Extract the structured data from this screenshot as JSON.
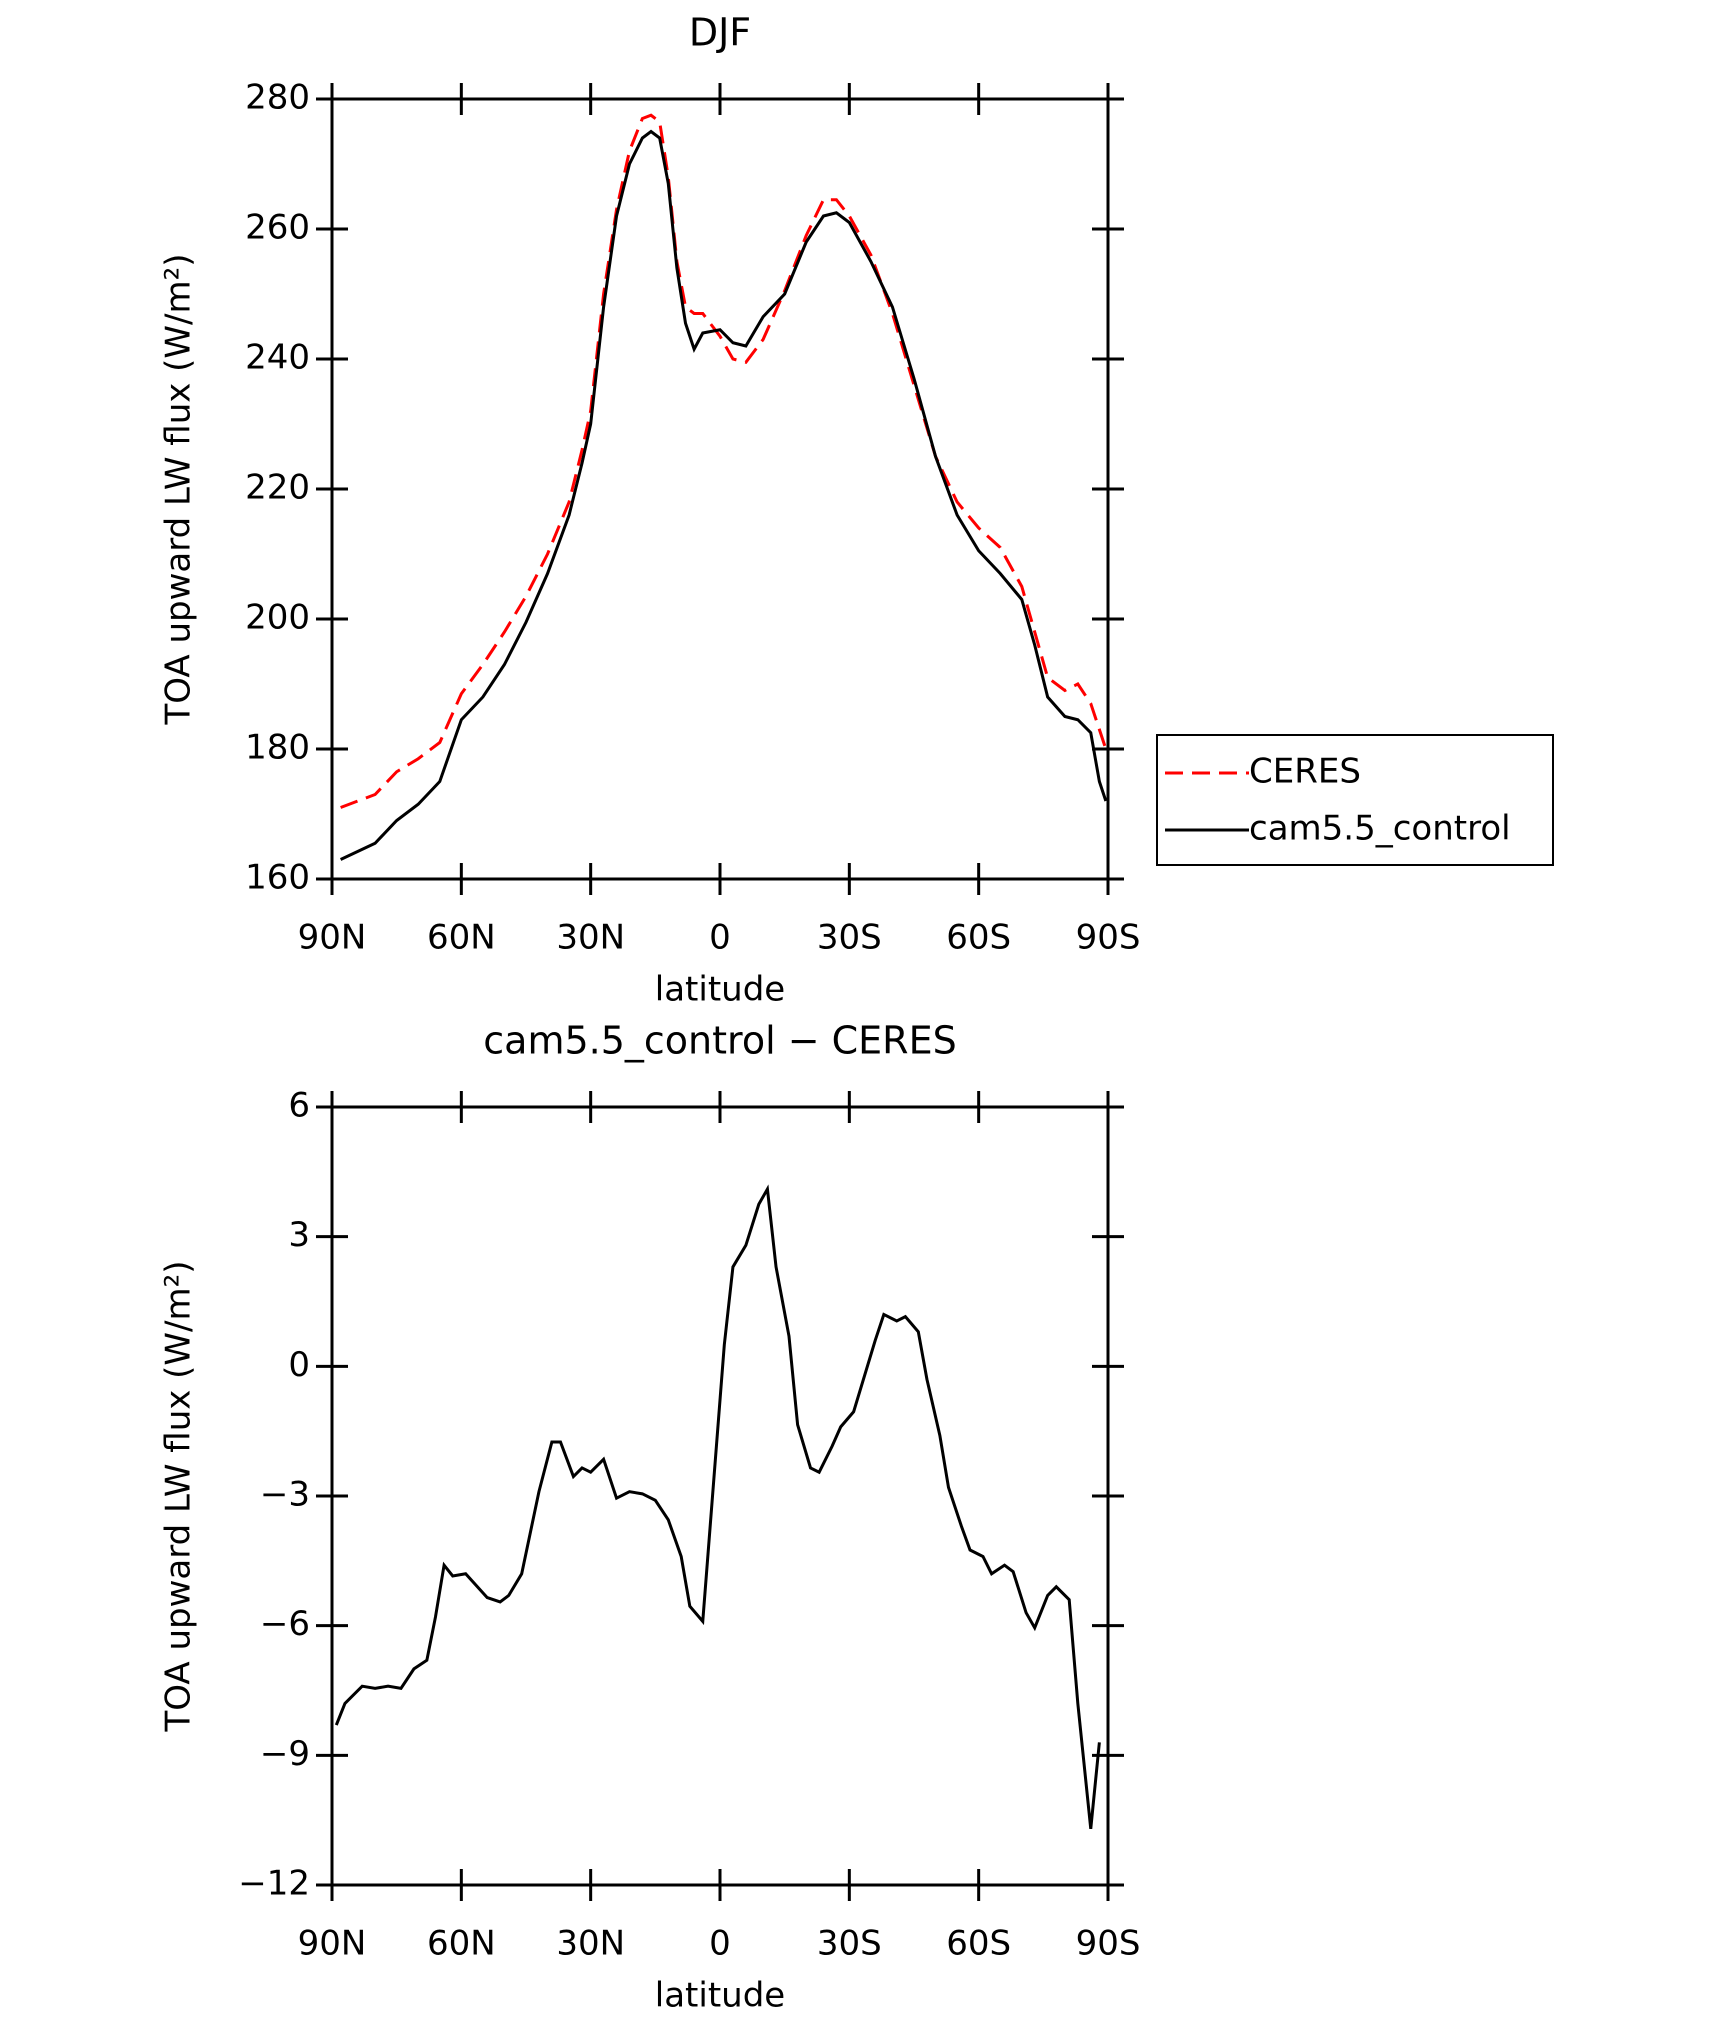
{
  "chart_data": [
    {
      "type": "line",
      "title": "DJF",
      "xlabel": "latitude",
      "ylabel": "TOA upward LW flux (W/m²)",
      "x": [
        88,
        80,
        75,
        70,
        65,
        60,
        55,
        50,
        45,
        40,
        35,
        32,
        30,
        27,
        24,
        21,
        18,
        16,
        14,
        12,
        10,
        8,
        6,
        4,
        0,
        -3,
        -6,
        -10,
        -15,
        -20,
        -24,
        -27,
        -30,
        -35,
        -40,
        -45,
        -50,
        -55,
        -60,
        -65,
        -70,
        -73,
        -76,
        -80,
        -83,
        -86,
        -88,
        -89.5
      ],
      "series": [
        {
          "name": "CERES",
          "color": "#ff0000",
          "dash": true,
          "values": [
            171,
            173,
            176.5,
            178.5,
            181,
            188.5,
            193,
            198,
            203.5,
            210,
            218,
            226,
            232,
            250,
            263,
            272,
            277,
            277.5,
            276.5,
            268,
            255,
            248,
            247,
            247,
            243.5,
            240,
            239.5,
            243,
            250.5,
            259,
            264.5,
            264.5,
            262,
            256,
            247,
            236,
            225,
            218,
            214,
            211,
            205,
            198,
            191,
            189,
            190,
            187,
            183,
            180
          ]
        },
        {
          "name": "cam5.5_control",
          "color": "#000000",
          "dash": false,
          "values": [
            163,
            165.5,
            169,
            171.5,
            175,
            184.5,
            188,
            193,
            199.5,
            207,
            216,
            224,
            230,
            248,
            262,
            270,
            274,
            275,
            274,
            267,
            254,
            245.5,
            241.5,
            244,
            244.5,
            242.5,
            242,
            246.5,
            250,
            258,
            262,
            262.5,
            261,
            255,
            248,
            237,
            225,
            216,
            210.5,
            207,
            203,
            196,
            188,
            185,
            184.5,
            182.5,
            175,
            172
          ]
        }
      ],
      "xlim": [
        90,
        -90
      ],
      "ylim": [
        160,
        280
      ],
      "xticks": [
        {
          "value": 90,
          "label": "90N"
        },
        {
          "value": 60,
          "label": "60N"
        },
        {
          "value": 30,
          "label": "30N"
        },
        0,
        {
          "value": -30,
          "label": "30S"
        },
        {
          "value": -60,
          "label": "60S"
        },
        {
          "value": -90,
          "label": "90S"
        }
      ],
      "yticks": [
        160,
        180,
        200,
        220,
        240,
        260,
        280
      ],
      "legend": "outside-right"
    },
    {
      "type": "line",
      "title": "cam5.5_control − CERES",
      "xlabel": "latitude",
      "ylabel": "TOA upward LW flux (W/m²)",
      "x": [
        89,
        87,
        83,
        80,
        77,
        74,
        71,
        68,
        66,
        64,
        62,
        59,
        54,
        51,
        49,
        46,
        42,
        39,
        37,
        34,
        32,
        30,
        27,
        24,
        21,
        18,
        15,
        12,
        9,
        7,
        4,
        -1,
        -3,
        -6,
        -9,
        -11,
        -13,
        -16,
        -18,
        -21,
        -23,
        -26,
        -28,
        -31,
        -36,
        -38,
        -41,
        -43,
        -46,
        -48,
        -51,
        -53,
        -56,
        -58,
        -61,
        -63,
        -66,
        -68,
        -71,
        -73,
        -76,
        -78,
        -81,
        -83,
        -86,
        -88
      ],
      "series": [
        {
          "color": "#000000",
          "dash": false,
          "values": [
            -8.3,
            -7.8,
            -7.4,
            -7.45,
            -7.4,
            -7.45,
            -7.0,
            -6.8,
            -5.8,
            -4.6,
            -4.85,
            -4.8,
            -5.35,
            -5.45,
            -5.3,
            -4.8,
            -2.9,
            -1.75,
            -1.75,
            -2.55,
            -2.35,
            -2.45,
            -2.15,
            -3.05,
            -2.9,
            -2.95,
            -3.1,
            -3.55,
            -4.4,
            -5.55,
            -5.9,
            0.5,
            2.3,
            2.8,
            3.75,
            4.1,
            2.3,
            0.7,
            -1.35,
            -2.35,
            -2.45,
            -1.85,
            -1.4,
            -1.05,
            0.6,
            1.2,
            1.05,
            1.15,
            0.8,
            -0.3,
            -1.6,
            -2.8,
            -3.7,
            -4.25,
            -4.4,
            -4.8,
            -4.6,
            -4.75,
            -5.7,
            -6.05,
            -5.3,
            -5.1,
            -5.4,
            -7.8,
            -10.7,
            -8.7
          ]
        }
      ],
      "xlim": [
        90,
        -90
      ],
      "ylim": [
        -12,
        6
      ],
      "xticks": [
        {
          "value": 90,
          "label": "90N"
        },
        {
          "value": 60,
          "label": "60N"
        },
        {
          "value": 30,
          "label": "30N"
        },
        0,
        {
          "value": -30,
          "label": "30S"
        },
        {
          "value": -60,
          "label": "60S"
        },
        {
          "value": -90,
          "label": "90S"
        }
      ],
      "yticks": [
        {
          "value": -12,
          "label": "−12"
        },
        {
          "value": -9,
          "label": "−9"
        },
        {
          "value": -6,
          "label": "−6"
        },
        {
          "value": -3,
          "label": "−3"
        },
        0,
        3,
        6
      ]
    }
  ]
}
